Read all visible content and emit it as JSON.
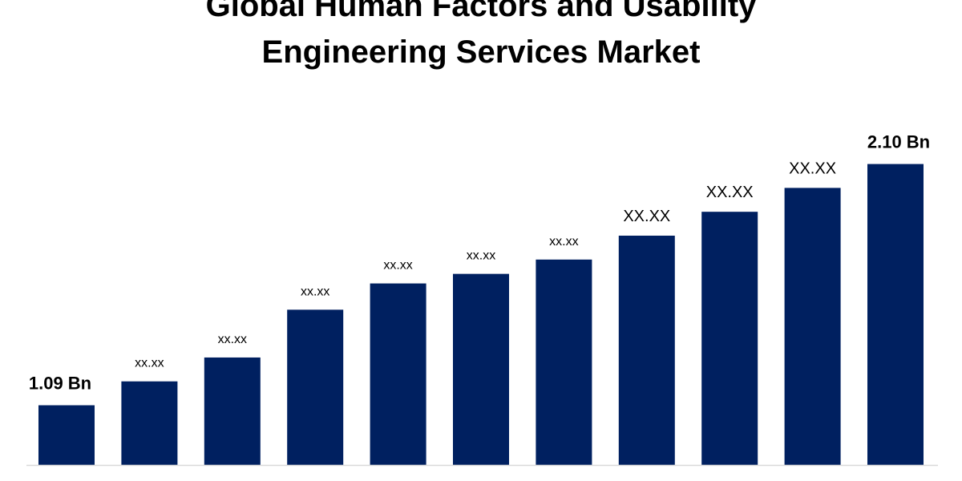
{
  "chart_data": {
    "type": "bar",
    "title": "Global Human Factors and Usability Engineering Services Market",
    "values": [
      1.09,
      1.19,
      1.29,
      1.49,
      1.6,
      1.64,
      1.7,
      1.8,
      1.9,
      2.0,
      2.1
    ],
    "value_labels": [
      "1.09 Bn",
      "xx.xx",
      "xx.xx",
      "xx.xx",
      "xx.xx",
      "xx.xx",
      "xx.xx",
      "XX.XX",
      "XX.XX",
      "XX.XX",
      "2.10 Bn"
    ],
    "color": "#002060",
    "ylim": [
      0.84,
      2.3
    ]
  }
}
